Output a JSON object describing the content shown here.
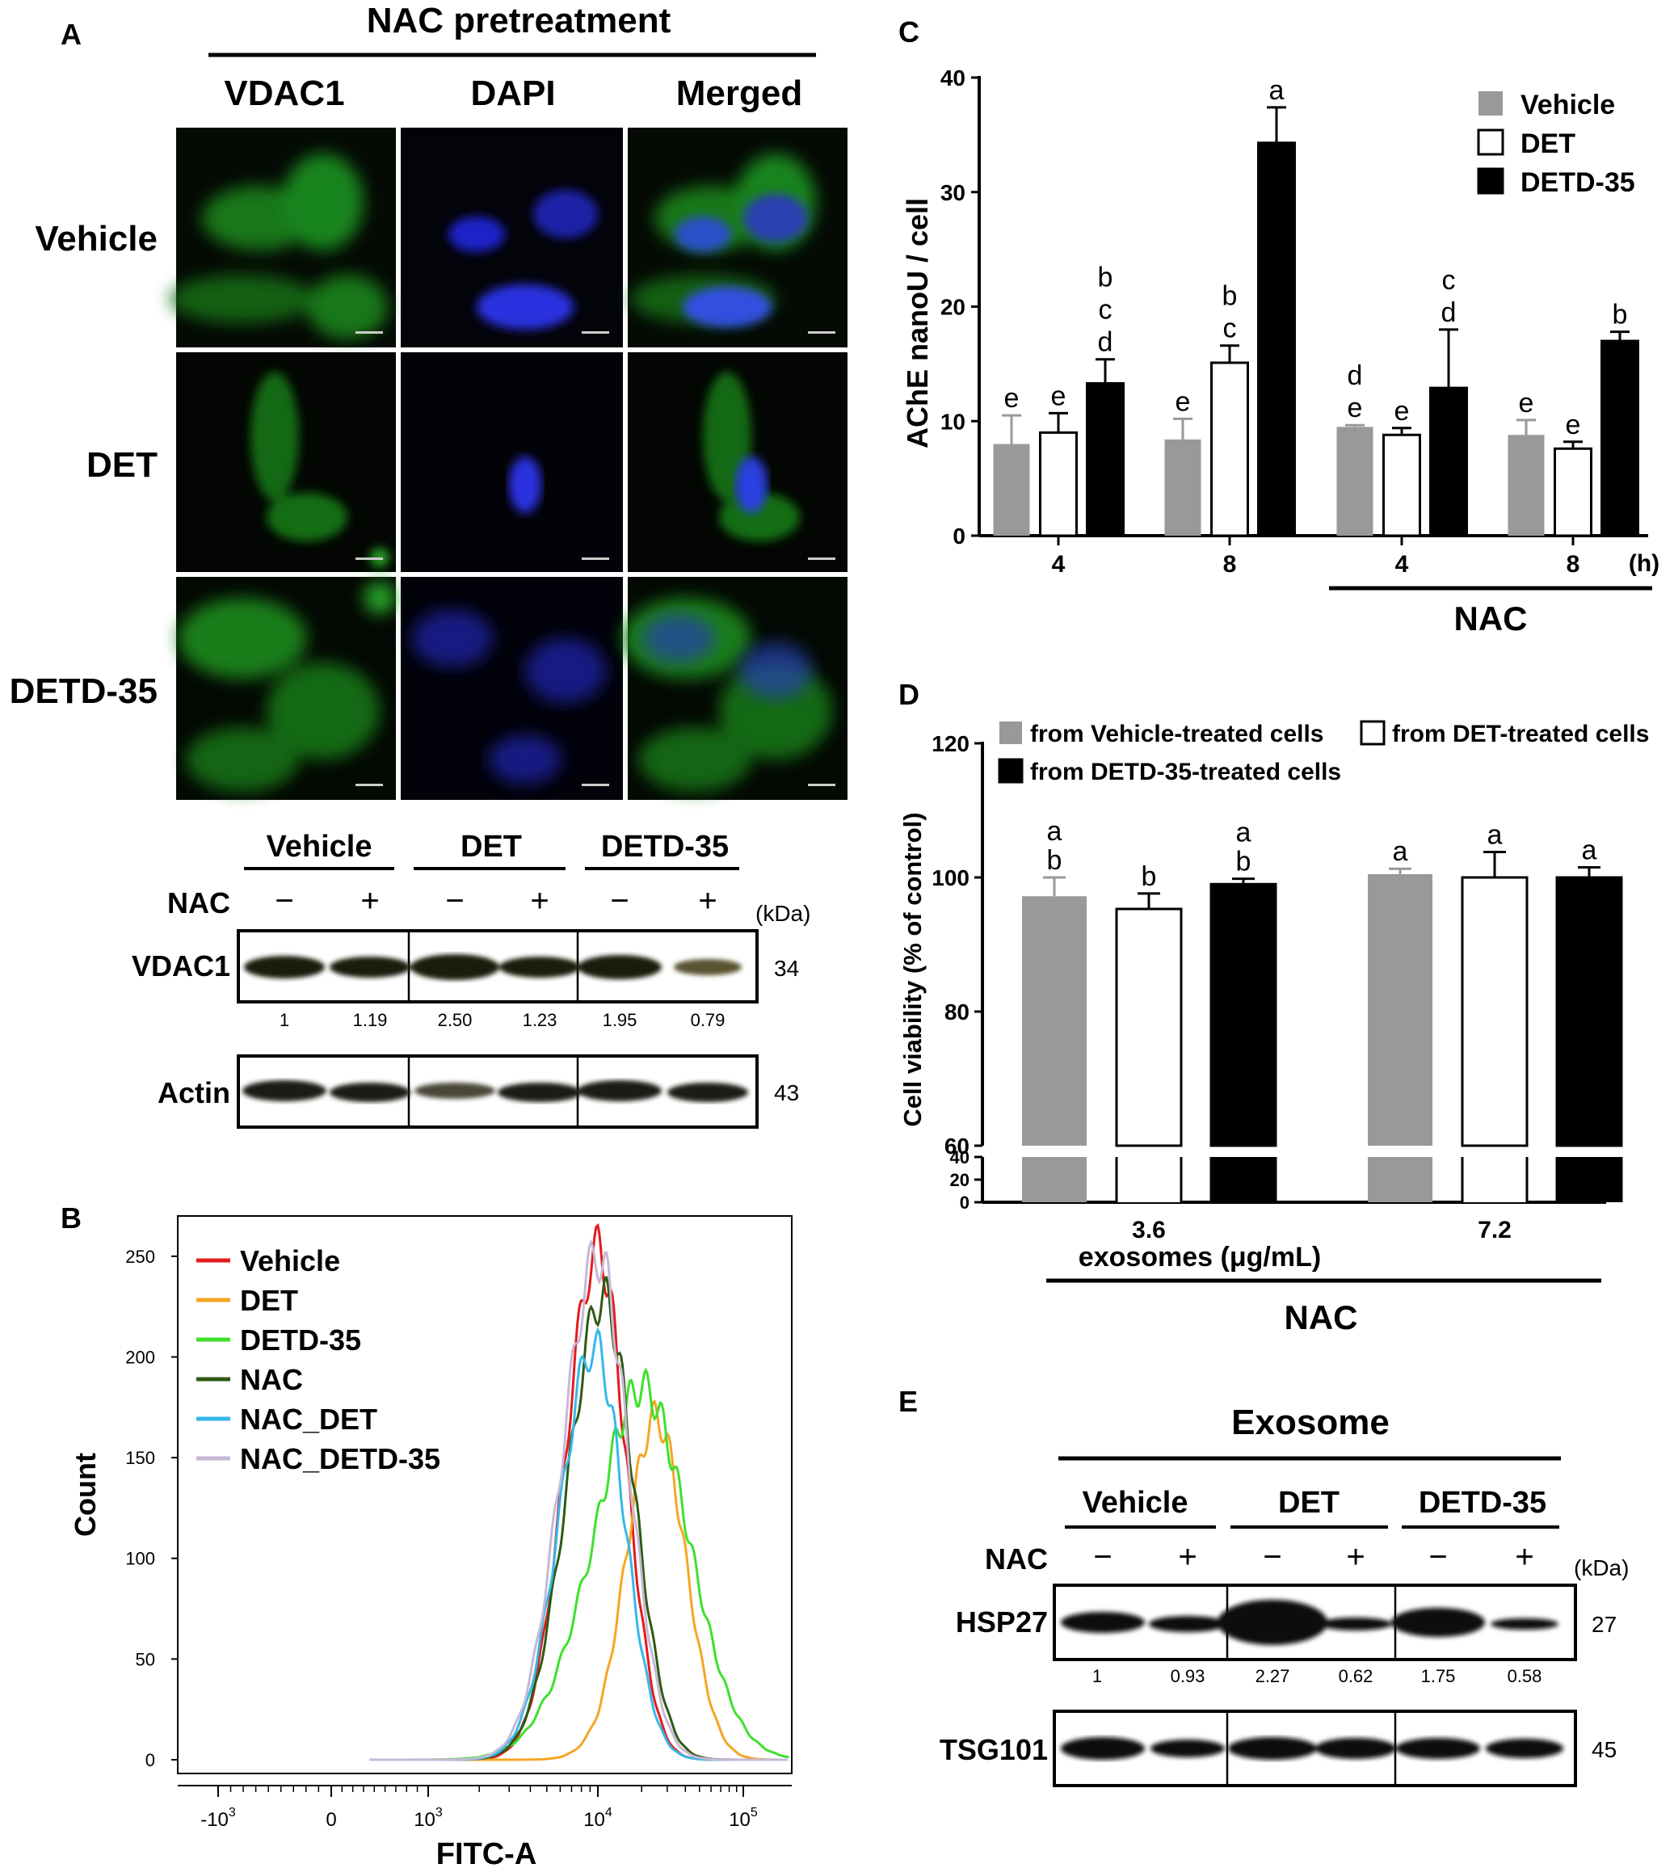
{
  "panelA": {
    "letter": "A",
    "header": "NAC pretreatment",
    "cols": [
      "VDAC1",
      "DAPI",
      "Merged"
    ],
    "rows": [
      "Vehicle",
      "DET",
      "DETD-35"
    ],
    "wb": {
      "groups": [
        "Vehicle",
        "DET",
        "DETD-35"
      ],
      "nac_label": "NAC",
      "signs": [
        "−",
        "+",
        "−",
        "+",
        "−",
        "+"
      ],
      "unit": "(kDa)",
      "proteins": [
        {
          "name": "VDAC1",
          "kda": "34"
        },
        {
          "name": "Actin",
          "kda": "43"
        }
      ],
      "quant": [
        "1",
        "1.19",
        "2.50",
        "1.23",
        "1.95",
        "0.79"
      ]
    }
  },
  "panelB": {
    "letter": "B",
    "ylabel": "Count",
    "xlabel": "FITC-A",
    "yticks": [
      "0",
      "50",
      "100",
      "150",
      "200",
      "250"
    ],
    "xticks": [
      {
        "base": "-10",
        "exp": "3"
      },
      {
        "base": "0",
        "exp": ""
      },
      {
        "base": "10",
        "exp": "3"
      },
      {
        "base": "10",
        "exp": "4"
      },
      {
        "base": "10",
        "exp": "5"
      }
    ],
    "legend": [
      {
        "name": "Vehicle",
        "color": "#e41a1c"
      },
      {
        "name": "DET",
        "color": "#f5a623"
      },
      {
        "name": "DETD-35",
        "color": "#3ee02c"
      },
      {
        "name": "NAC",
        "color": "#2e5a14"
      },
      {
        "name": "NAC_DET",
        "color": "#35b8ea"
      },
      {
        "name": "NAC_DETD-35",
        "color": "#c7b8d6"
      }
    ]
  },
  "panelC": {
    "letter": "C",
    "bracket_label": "NAC",
    "hour_unit": "(h)",
    "ylabel": "AChE nanoU / cell"
  },
  "panelD": {
    "letter": "D",
    "bracket_label": "NAC"
  },
  "panelE": {
    "letter": "E",
    "header": "Exosome",
    "groups": [
      "Vehicle",
      "DET",
      "DETD-35"
    ],
    "nac_label": "NAC",
    "signs": [
      "−",
      "+",
      "−",
      "+",
      "−",
      "+"
    ],
    "unit": "(kDa)",
    "proteins": [
      {
        "name": "HSP27",
        "kda": "27"
      },
      {
        "name": "TSG101",
        "kda": "45"
      }
    ],
    "quant": [
      "1",
      "0.93",
      "2.27",
      "0.62",
      "1.75",
      "0.58"
    ]
  },
  "chart_data": [
    {
      "type": "line",
      "panel": "B",
      "xlabel": "FITC-A",
      "ylabel": "Count",
      "xscale": "biexponential",
      "xlim": [
        -1000,
        200000
      ],
      "ylim": [
        0,
        270
      ],
      "series": [
        {
          "name": "Vehicle",
          "peak_x": 10000,
          "peak_y": 253
        },
        {
          "name": "DET",
          "peak_x": 25000,
          "peak_y": 170
        },
        {
          "name": "DETD-35",
          "peak_x": 20000,
          "peak_y": 185
        },
        {
          "name": "NAC",
          "peak_x": 10800,
          "peak_y": 230
        },
        {
          "name": "NAC_DET",
          "peak_x": 9500,
          "peak_y": 205
        },
        {
          "name": "NAC_DETD-35",
          "peak_x": 10000,
          "peak_y": 250
        }
      ]
    },
    {
      "type": "bar",
      "panel": "C",
      "ylabel": "AChE nanoU / cell",
      "xlabel": "",
      "ylim": [
        0,
        40
      ],
      "yticks": [
        "0",
        "10",
        "20",
        "30",
        "40"
      ],
      "categories": [
        "4",
        "8",
        "4",
        "8"
      ],
      "series": [
        {
          "name": "Vehicle",
          "color": "#999999",
          "values": [
            8.0,
            8.4,
            9.5,
            8.8
          ],
          "errors": [
            2.5,
            1.8,
            0.15,
            1.3
          ],
          "letters": [
            "e",
            "e",
            "d e",
            "e"
          ]
        },
        {
          "name": "DET",
          "color": "#ffffff",
          "values": [
            9.0,
            15.1,
            8.8,
            7.6
          ],
          "errors": [
            1.7,
            1.5,
            0.6,
            0.6
          ],
          "letters": [
            "e",
            "b c",
            "e",
            "e"
          ]
        },
        {
          "name": "DETD-35",
          "color": "#000000",
          "values": [
            13.3,
            34.3,
            12.9,
            17.0
          ],
          "errors": [
            2.1,
            3.1,
            5.1,
            0.8
          ],
          "letters": [
            "b c d",
            "a",
            "c d",
            "b"
          ]
        }
      ]
    },
    {
      "type": "bar",
      "panel": "D",
      "ylabel": "Cell viability (% of control)",
      "xlabel": "exosomes (μg/mL)",
      "ylim": [
        0,
        120
      ],
      "yticks": [
        "0",
        "20",
        "40",
        "60",
        "80",
        "100",
        "120"
      ],
      "categories": [
        "3.6",
        "7.2"
      ],
      "series": [
        {
          "name": "from Vehicle-treated cells",
          "color": "#999999",
          "values": [
            97.2,
            100.5
          ],
          "errors": [
            2.8,
            0.8
          ],
          "letters": [
            "a b",
            "a"
          ]
        },
        {
          "name": "from DET-treated cells",
          "color": "#ffffff",
          "values": [
            95.3,
            100.0
          ],
          "errors": [
            2.3,
            3.8
          ],
          "letters": [
            "b",
            "a"
          ]
        },
        {
          "name": "from DETD-35-treated cells",
          "color": "#000000",
          "values": [
            99.0,
            100.0
          ],
          "errors": [
            0.8,
            1.5
          ],
          "letters": [
            "a b",
            "a"
          ]
        }
      ]
    }
  ]
}
